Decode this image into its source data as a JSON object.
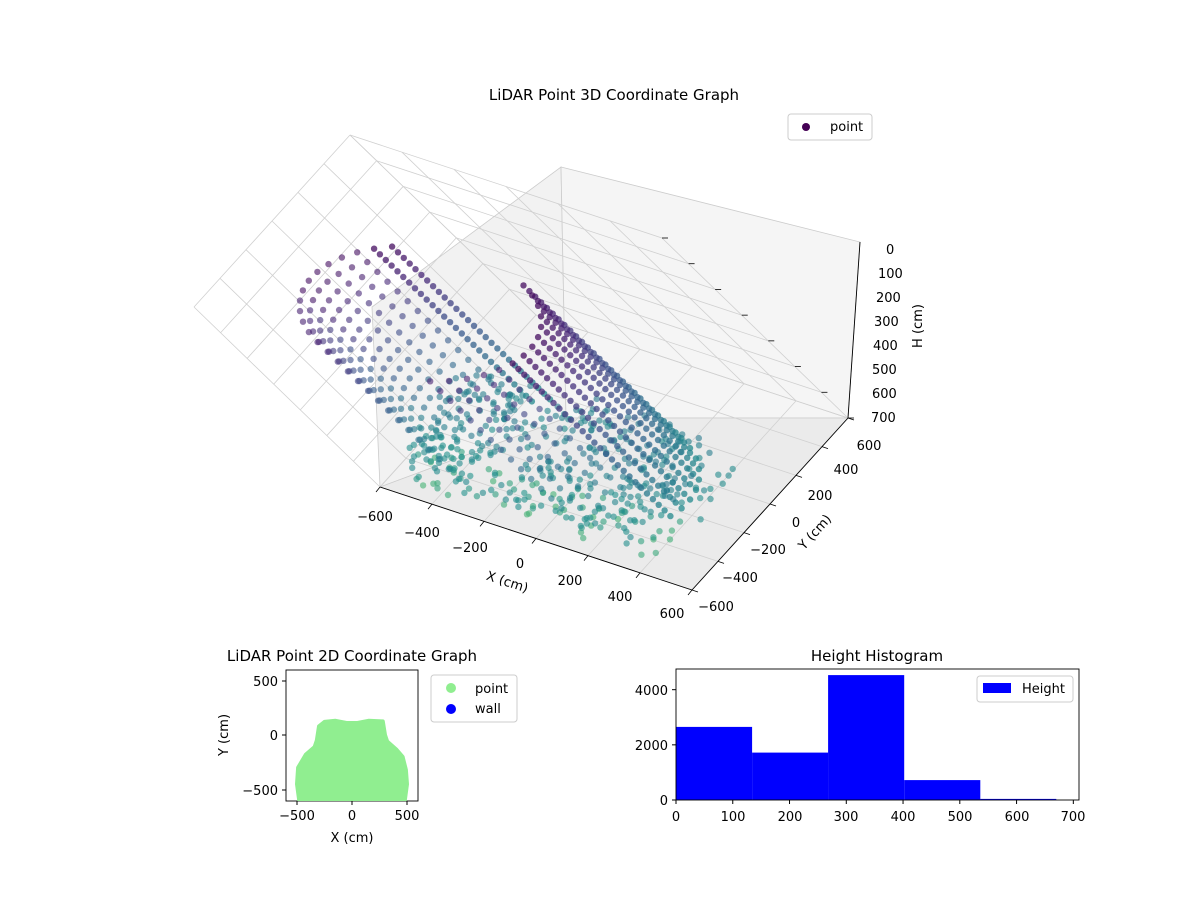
{
  "charts": {
    "scatter3d": {
      "title": "LiDAR Point 3D Coordinate Graph",
      "xlabel": "X (cm)",
      "ylabel": "Y (cm)",
      "zlabel": "H (cm)",
      "legend": "point",
      "xticks": [
        "−600",
        "−400",
        "−200",
        "0",
        "200",
        "400",
        "600"
      ],
      "yticks": [
        "−600",
        "−400",
        "−200",
        "0",
        "200",
        "400",
        "600"
      ],
      "zticks": [
        "0",
        "100",
        "200",
        "300",
        "400",
        "500",
        "600",
        "700"
      ]
    },
    "scatter2d": {
      "title": "LiDAR Point 2D Coordinate Graph",
      "xlabel": "X (cm)",
      "ylabel": "Y (cm)",
      "legend": [
        "point",
        "wall"
      ],
      "xticks": [
        "−500",
        "0",
        "500"
      ],
      "yticks": [
        "500",
        "0",
        "−500"
      ]
    },
    "histogram": {
      "title": "Height Histogram",
      "legend": "Height",
      "xticks": [
        "0",
        "100",
        "200",
        "300",
        "400",
        "500",
        "600",
        "700"
      ],
      "yticks": [
        "0",
        "2000",
        "4000"
      ]
    }
  },
  "chart_data": [
    {
      "type": "scatter",
      "projection": "3d",
      "title": "LiDAR Point 3D Coordinate Graph",
      "xlabel": "X (cm)",
      "ylabel": "Y (cm)",
      "zlabel": "H (cm)",
      "xlim": [
        -600,
        600
      ],
      "ylim": [
        -600,
        600
      ],
      "zlim": [
        700,
        0
      ],
      "z_axis_inverted": true,
      "grid": true,
      "legend": "top-right",
      "colormap": "viridis",
      "series": [
        {
          "name": "point",
          "shape": "vertical columns of points around an arc of the room boundary, denser columns at the back and right walls plus a sparse floor area",
          "approx_x_range": [
            -500,
            500
          ],
          "approx_y_range": [
            -550,
            150
          ],
          "approx_h_range": [
            0,
            650
          ]
        }
      ]
    },
    {
      "type": "scatter",
      "title": "LiDAR Point 2D Coordinate Graph",
      "xlabel": "X (cm)",
      "ylabel": "Y (cm)",
      "xlim": [
        -600,
        600
      ],
      "ylim": [
        -600,
        600
      ],
      "legend": "outside-right",
      "series": [
        {
          "name": "point",
          "color": "#90ee90",
          "outline": [
            [
              -480,
              -600
            ],
            [
              -500,
              -450
            ],
            [
              -490,
              -300
            ],
            [
              -420,
              -180
            ],
            [
              -340,
              -110
            ],
            [
              -320,
              -50
            ],
            [
              -300,
              80
            ],
            [
              -250,
              120
            ],
            [
              -150,
              130
            ],
            [
              -50,
              110
            ],
            [
              50,
              110
            ],
            [
              150,
              130
            ],
            [
              280,
              125
            ],
            [
              300,
              0
            ],
            [
              320,
              -60
            ],
            [
              400,
              -130
            ],
            [
              460,
              -200
            ],
            [
              490,
              -320
            ],
            [
              500,
              -450
            ],
            [
              480,
              -600
            ]
          ]
        },
        {
          "name": "wall",
          "color": "#0000ff",
          "points": []
        }
      ]
    },
    {
      "type": "bar",
      "subtype": "histogram",
      "title": "Height Histogram",
      "xlabel": "",
      "ylabel": "",
      "xlim": [
        0,
        710
      ],
      "ylim": [
        0,
        4750
      ],
      "legend": "top-right",
      "color": "#0000ff",
      "series": [
        {
          "name": "Height",
          "bins": [
            [
              0,
              134
            ],
            [
              134,
              268
            ],
            [
              268,
              402
            ],
            [
              402,
              536
            ],
            [
              536,
              670
            ]
          ],
          "values": [
            2650,
            1720,
            4530,
            720,
            40
          ]
        }
      ]
    }
  ]
}
